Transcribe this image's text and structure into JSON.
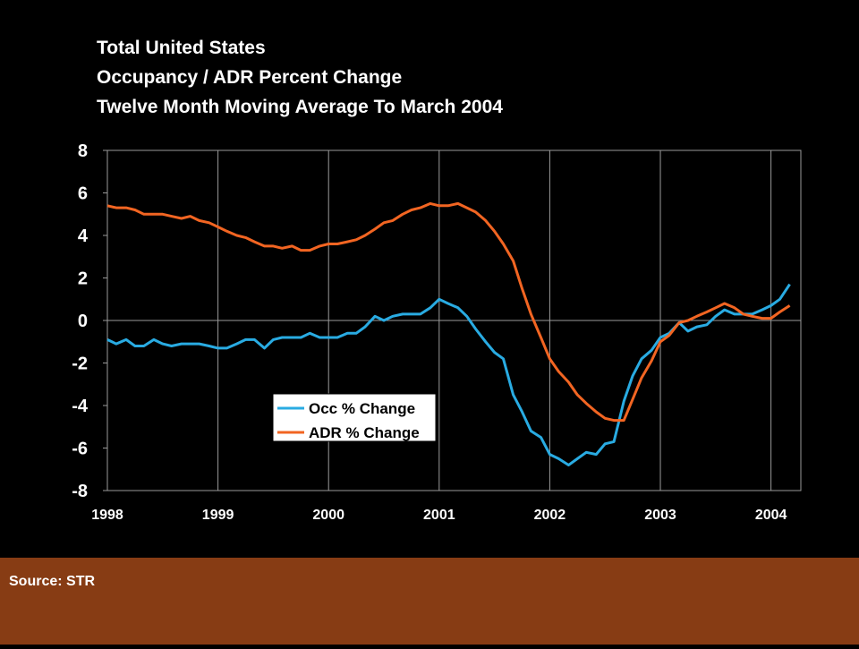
{
  "chart_data": {
    "type": "line",
    "title": [
      "Total United States",
      "Occupancy / ADR Percent Change",
      "Twelve Month Moving Average To March 2004"
    ],
    "x": [
      1998,
      1998.08,
      1998.17,
      1998.25,
      1998.33,
      1998.42,
      1998.5,
      1998.58,
      1998.67,
      1998.75,
      1998.83,
      1998.92,
      1999,
      1999.08,
      1999.17,
      1999.25,
      1999.33,
      1999.42,
      1999.5,
      1999.58,
      1999.67,
      1999.75,
      1999.83,
      1999.92,
      2000,
      2000.08,
      2000.17,
      2000.25,
      2000.33,
      2000.42,
      2000.5,
      2000.58,
      2000.67,
      2000.75,
      2000.83,
      2000.92,
      2001,
      2001.08,
      2001.17,
      2001.25,
      2001.33,
      2001.42,
      2001.5,
      2001.58,
      2001.67,
      2001.75,
      2001.83,
      2001.92,
      2002,
      2002.08,
      2002.17,
      2002.25,
      2002.33,
      2002.42,
      2002.5,
      2002.58,
      2002.67,
      2002.75,
      2002.83,
      2002.92,
      2003,
      2003.08,
      2003.17,
      2003.25,
      2003.33,
      2003.42,
      2003.5,
      2003.58,
      2003.67,
      2003.75,
      2003.83,
      2003.92,
      2004,
      2004.08,
      2004.17
    ],
    "series": [
      {
        "name": "Occ % Change",
        "color": "#29abe2",
        "values": [
          -0.9,
          -1.1,
          -0.9,
          -1.2,
          -1.2,
          -0.9,
          -1.1,
          -1.2,
          -1.1,
          -1.1,
          -1.1,
          -1.2,
          -1.3,
          -1.3,
          -1.1,
          -0.9,
          -0.9,
          -1.3,
          -0.9,
          -0.8,
          -0.8,
          -0.8,
          -0.6,
          -0.8,
          -0.8,
          -0.8,
          -0.6,
          -0.6,
          -0.3,
          0.2,
          0.0,
          0.2,
          0.3,
          0.3,
          0.3,
          0.6,
          1.0,
          0.8,
          0.6,
          0.2,
          -0.4,
          -1.0,
          -1.5,
          -1.8,
          -3.5,
          -4.3,
          -5.2,
          -5.5,
          -6.3,
          -6.5,
          -6.8,
          -6.5,
          -6.2,
          -6.3,
          -5.8,
          -5.7,
          -3.8,
          -2.6,
          -1.8,
          -1.4,
          -0.8,
          -0.6,
          -0.1,
          -0.5,
          -0.3,
          -0.2,
          0.2,
          0.5,
          0.3,
          0.3,
          0.3,
          0.5,
          0.7,
          1.0,
          1.7
        ]
      },
      {
        "name": "ADR % Change",
        "color": "#f26522",
        "values": [
          5.4,
          5.3,
          5.3,
          5.2,
          5.0,
          5.0,
          5.0,
          4.9,
          4.8,
          4.9,
          4.7,
          4.6,
          4.4,
          4.2,
          4.0,
          3.9,
          3.7,
          3.5,
          3.5,
          3.4,
          3.5,
          3.3,
          3.3,
          3.5,
          3.6,
          3.6,
          3.7,
          3.8,
          4.0,
          4.3,
          4.6,
          4.7,
          5.0,
          5.2,
          5.3,
          5.5,
          5.4,
          5.4,
          5.5,
          5.3,
          5.1,
          4.7,
          4.2,
          3.6,
          2.8,
          1.5,
          0.3,
          -0.8,
          -1.8,
          -2.4,
          -2.9,
          -3.5,
          -3.9,
          -4.3,
          -4.6,
          -4.7,
          -4.7,
          -3.7,
          -2.7,
          -1.9,
          -1.0,
          -0.7,
          -0.1,
          0.0,
          0.2,
          0.4,
          0.6,
          0.8,
          0.6,
          0.3,
          0.2,
          0.1,
          0.1,
          0.4,
          0.7
        ]
      }
    ],
    "xlim": [
      1998,
      2004.27
    ],
    "xticks": [
      1998,
      1999,
      2000,
      2001,
      2002,
      2003,
      2004
    ],
    "ylim": [
      -8,
      8
    ],
    "yticks": [
      -8,
      -6,
      -4,
      -2,
      0,
      2,
      4,
      6,
      8
    ],
    "xgrid": true
  },
  "footer": {
    "source": "Source: STR"
  }
}
